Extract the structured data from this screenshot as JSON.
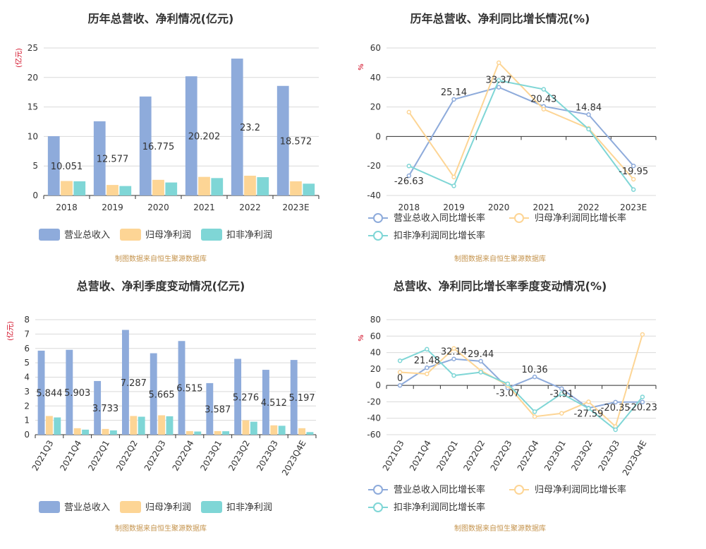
{
  "colors": {
    "revenue": "#8eabdb",
    "parent_profit": "#fdd595",
    "deducted_profit": "#7fd6d6",
    "grid": "#d9d9d9",
    "axis": "#666666"
  },
  "chart_data": [
    {
      "type": "bar",
      "title": "历年总营收、净利情况(亿元)",
      "unit": "(亿元)",
      "categories": [
        "2018",
        "2019",
        "2020",
        "2021",
        "2022",
        "2023E"
      ],
      "ylim": [
        0,
        25
      ],
      "yticks": [
        0,
        5,
        10,
        15,
        20,
        25
      ],
      "series": [
        {
          "name": "营业总收入",
          "values": [
            10.051,
            12.577,
            16.775,
            20.202,
            23.2,
            18.572
          ],
          "data_labels": [
            "10.051",
            "12.577",
            "16.775",
            "20.202",
            "23.2",
            "18.572"
          ]
        },
        {
          "name": "归母净利润",
          "values": [
            2.45,
            1.78,
            2.65,
            3.15,
            3.35,
            2.4
          ]
        },
        {
          "name": "扣非净利润",
          "values": [
            2.4,
            1.6,
            2.2,
            2.95,
            3.1,
            2.0
          ]
        }
      ],
      "source": "制图数据来自恒生聚源数据库",
      "legend_position": "bottom-left"
    },
    {
      "type": "line",
      "title": "历年总营收、净利同比增长情况(%)",
      "unit": "%",
      "categories": [
        "2018",
        "2019",
        "2020",
        "2021",
        "2022",
        "2023E"
      ],
      "ylim": [
        -40,
        60
      ],
      "yticks": [
        -40,
        -20,
        0,
        20,
        40,
        60
      ],
      "series": [
        {
          "name": "营业总收入同比增长率",
          "values": [
            -26.63,
            25.14,
            33.37,
            20.43,
            14.84,
            -19.95
          ],
          "data_labels": [
            "-26.63",
            "25.14",
            "33.37",
            "20.43",
            "14.84",
            "-19.95"
          ]
        },
        {
          "name": "归母净利润同比增长率",
          "values": [
            16.5,
            -27.5,
            50.0,
            18.5,
            5.5,
            -29.0
          ]
        },
        {
          "name": "扣非净利润同比增长率",
          "values": [
            -20.0,
            -33.5,
            38.0,
            32.0,
            5.0,
            -36.0
          ]
        }
      ],
      "source": "制图数据来自恒生聚源数据库",
      "legend_position": "bottom-left"
    },
    {
      "type": "bar",
      "title": "总营收、净利季度变动情况(亿元)",
      "unit": "(亿元)",
      "categories": [
        "2021Q3",
        "2021Q4",
        "2022Q1",
        "2022Q2",
        "2022Q3",
        "2022Q4",
        "2023Q1",
        "2023Q2",
        "2023Q3",
        "2023Q4E"
      ],
      "ylim": [
        0,
        8
      ],
      "yticks": [
        0,
        1,
        2,
        3,
        4,
        5,
        6,
        7,
        8
      ],
      "series": [
        {
          "name": "营业总收入",
          "values": [
            5.844,
            5.903,
            3.733,
            7.287,
            5.665,
            6.515,
            3.587,
            5.276,
            4.512,
            5.197
          ],
          "data_labels": [
            "5.844",
            "5.903",
            "3.733",
            "7.287",
            "5.665",
            "6.515",
            "3.587",
            "5.276",
            "4.512",
            "5.197"
          ]
        },
        {
          "name": "归母净利润",
          "values": [
            1.3,
            0.45,
            0.4,
            1.3,
            1.35,
            0.25,
            0.25,
            1.0,
            0.65,
            0.45
          ]
        },
        {
          "name": "扣非净利润",
          "values": [
            1.2,
            0.35,
            0.3,
            1.25,
            1.28,
            0.22,
            0.24,
            0.9,
            0.62,
            0.18
          ]
        }
      ],
      "source": "制图数据来自恒生聚源数据库",
      "legend_position": "bottom-left"
    },
    {
      "type": "line",
      "title": "总营收、净利同比增长率季度变动情况(%)",
      "unit": "%",
      "categories": [
        "2021Q3",
        "2021Q4",
        "2022Q1",
        "2022Q2",
        "2022Q3",
        "2022Q4",
        "2023Q1",
        "2023Q2",
        "2023Q3",
        "2023Q4E"
      ],
      "ylim": [
        -60,
        80
      ],
      "yticks": [
        -60,
        -40,
        -20,
        0,
        20,
        40,
        60,
        80
      ],
      "series": [
        {
          "name": "营业总收入同比增长率",
          "values": [
            0,
            21.48,
            32.14,
            29.44,
            -3.07,
            10.36,
            -3.91,
            -27.59,
            -20.35,
            -20.23
          ],
          "data_labels": [
            "0",
            "21.48",
            "32.14",
            "29.44",
            "-3.07",
            "10.36",
            "-3.91",
            "-27.59",
            "-20.35",
            "-20.23"
          ]
        },
        {
          "name": "归母净利润同比增长率",
          "values": [
            16,
            14,
            45,
            18,
            0,
            -38,
            -34,
            -20,
            -50,
            62
          ]
        },
        {
          "name": "扣非净利润同比增长率",
          "values": [
            30,
            44,
            12,
            16,
            2,
            -32,
            -10,
            -28,
            -54,
            -14
          ]
        }
      ],
      "source": "制图数据来自恒生聚源数据库",
      "legend_position": "bottom-left"
    }
  ]
}
